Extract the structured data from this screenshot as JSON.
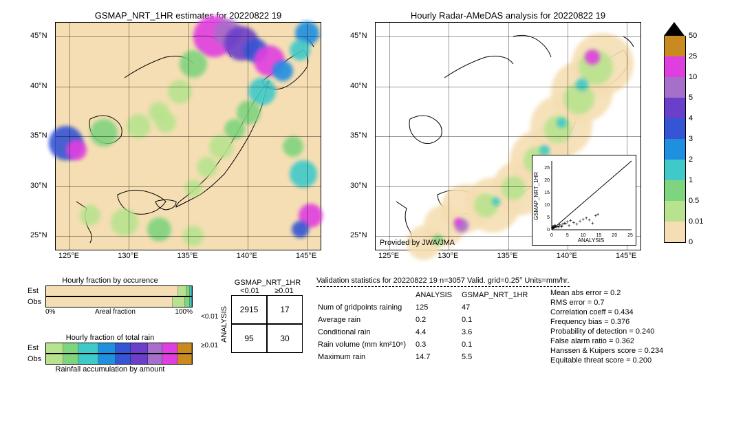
{
  "maps": {
    "left": {
      "title": "GSMAP_NRT_1HR estimates for 20220822 19"
    },
    "right": {
      "title": "Hourly Radar-AMeDAS analysis for 20220822 19"
    },
    "xticks": [
      "125°E",
      "130°E",
      "135°E",
      "140°E",
      "145°E"
    ],
    "yticks": [
      "25°N",
      "30°N",
      "35°N",
      "40°N",
      "45°N"
    ],
    "provided": "Provided by JWA/JMA",
    "bg_color": "#f5deb3",
    "sea_color": "#f5deb3",
    "land_stroke": "#000000"
  },
  "colorbar": {
    "labels": [
      "0",
      "0.01",
      "0.5",
      "1",
      "2",
      "3",
      "4",
      "5",
      "10",
      "25",
      "50"
    ],
    "colors": [
      "#f5deb3",
      "#b8e38e",
      "#7fd47f",
      "#3fc9c9",
      "#1f8fe0",
      "#3555d4",
      "#6a3fc9",
      "#a66fc9",
      "#e03fe0",
      "#c98a1f"
    ],
    "arrow_color": "#000000"
  },
  "rain_colors": {
    "c0": "#f5deb3",
    "c1": "#b8e38e",
    "c2": "#7fd47f",
    "c3": "#3fc9c9",
    "c4": "#1f8fe0",
    "c5": "#3555d4",
    "c6": "#6a3fc9",
    "c7": "#a66fc9",
    "c8": "#e03fe0",
    "c9": "#c98a1f"
  },
  "hourly_fraction": {
    "title_occ": "Hourly fraction by occurence",
    "title_total": "Hourly fraction of total rain",
    "title_accum": "Rainfall accumulation by amount",
    "rows_occ": [
      "Est",
      "Obs"
    ],
    "rows_total": [
      "Est",
      "Obs"
    ],
    "xaxis_left": "0%",
    "xaxis_label": "Areal fraction",
    "xaxis_right": "100%",
    "occ_est": [
      92,
      5,
      2,
      1
    ],
    "occ_obs": [
      88,
      8,
      3,
      1
    ],
    "total_est": [
      12,
      10,
      14,
      12,
      10,
      12,
      10,
      10,
      10
    ],
    "total_obs": [
      12,
      10,
      14,
      12,
      10,
      12,
      10,
      10,
      10
    ]
  },
  "contingency": {
    "col_title": "GSMAP_NRT_1HR",
    "row_title": "ANALYSIS",
    "col_headers": [
      "<0.01",
      "≥0.01"
    ],
    "row_headers": [
      "<0.01",
      "≥0.01"
    ],
    "cells": [
      [
        "2915",
        "17"
      ],
      [
        "95",
        "30"
      ]
    ]
  },
  "validation": {
    "title": "Validation statistics for 20220822 19  n=3057 Valid. grid=0.25° Units=mm/hr.",
    "col_headers": [
      "ANALYSIS",
      "GSMAP_NRT_1HR"
    ],
    "rows": [
      {
        "label": "Num of gridpoints raining",
        "a": "125",
        "b": "47"
      },
      {
        "label": "Average rain",
        "a": "0.2",
        "b": "0.1"
      },
      {
        "label": "Conditional rain",
        "a": "4.4",
        "b": "3.6"
      },
      {
        "label": "Rain volume (mm km²10⁶)",
        "a": "0.3",
        "b": "0.1"
      },
      {
        "label": "Maximum rain",
        "a": "14.7",
        "b": "5.5"
      }
    ]
  },
  "scores": {
    "mean_abs_error": "Mean abs error =   0.2",
    "rms_error": "RMS error =    0.7",
    "correlation": "Correlation coeff =  0.434",
    "freq_bias": "Frequency bias =  0.376",
    "pod": "Probability of detection =  0.240",
    "far": "False alarm ratio =  0.362",
    "hk": "Hanssen & Kuipers score =  0.234",
    "ets": "Equitable threat score =  0.200"
  },
  "scatter": {
    "xlabel": "ANALYSIS",
    "ylabel": "GSMAP_NRT_1HR",
    "ticks": [
      "0",
      "5",
      "10",
      "15",
      "20",
      "25"
    ],
    "max": 25,
    "points": [
      [
        0.2,
        0.1
      ],
      [
        0.5,
        0.3
      ],
      [
        1,
        0.2
      ],
      [
        1.5,
        0.4
      ],
      [
        2,
        0.6
      ],
      [
        2.5,
        1.2
      ],
      [
        3,
        0.8
      ],
      [
        3.5,
        1.5
      ],
      [
        4,
        2.0
      ],
      [
        4.5,
        1.8
      ],
      [
        5,
        2.5
      ],
      [
        5.5,
        1.0
      ],
      [
        6,
        3.0
      ],
      [
        7,
        2.2
      ],
      [
        8,
        1.5
      ],
      [
        9,
        2.8
      ],
      [
        10,
        3.5
      ],
      [
        11,
        4.0
      ],
      [
        12,
        3.2
      ],
      [
        13,
        2.0
      ],
      [
        14,
        5.0
      ],
      [
        14.7,
        5.5
      ],
      [
        0.8,
        0.5
      ],
      [
        1.2,
        0.9
      ],
      [
        0.3,
        0.1
      ],
      [
        0.6,
        0.2
      ],
      [
        2.2,
        0.4
      ],
      [
        3.2,
        0.6
      ],
      [
        0.4,
        0.7
      ],
      [
        0.9,
        1.1
      ]
    ]
  }
}
